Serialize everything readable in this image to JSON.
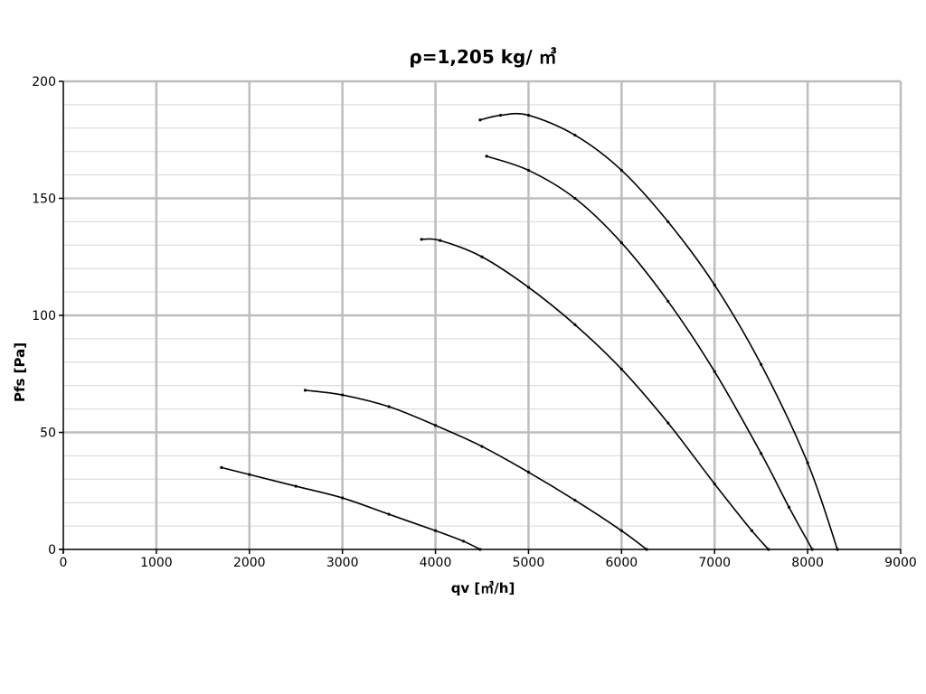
{
  "chart_data": {
    "type": "line",
    "title": "ρ=1,205 kg/ ㎥",
    "xlabel": "qv [㎥/h]",
    "ylabel": "Pfs [Pa]",
    "xlim": [
      0,
      9000
    ],
    "ylim": [
      0,
      200
    ],
    "x_ticks": [
      "0",
      "1000",
      "2000",
      "3000",
      "4000",
      "5000",
      "6000",
      "7000",
      "8000",
      "9000"
    ],
    "y_ticks": [
      "0",
      "50",
      "100",
      "150",
      "200"
    ],
    "y_minor_step": 10,
    "grid": true,
    "legend": "none",
    "series": [
      {
        "values": [
          [
            1700,
            35
          ],
          [
            2000,
            32
          ],
          [
            2500,
            27
          ],
          [
            3000,
            22
          ],
          [
            3500,
            15
          ],
          [
            4000,
            8
          ],
          [
            4300,
            3.5
          ],
          [
            4480,
            0
          ]
        ]
      },
      {
        "values": [
          [
            2600,
            68
          ],
          [
            3000,
            66
          ],
          [
            3500,
            61
          ],
          [
            4000,
            53
          ],
          [
            4500,
            44
          ],
          [
            5000,
            33
          ],
          [
            5500,
            21
          ],
          [
            6000,
            8
          ],
          [
            6270,
            0
          ]
        ]
      },
      {
        "values": [
          [
            3850,
            132.5
          ],
          [
            4050,
            132
          ],
          [
            4500,
            125
          ],
          [
            5000,
            112
          ],
          [
            5500,
            96
          ],
          [
            6000,
            77
          ],
          [
            6500,
            54
          ],
          [
            7000,
            28
          ],
          [
            7400,
            8
          ],
          [
            7580,
            0
          ]
        ]
      },
      {
        "values": [
          [
            4550,
            168
          ],
          [
            5000,
            162
          ],
          [
            5500,
            150
          ],
          [
            6000,
            131
          ],
          [
            6500,
            106
          ],
          [
            7000,
            76
          ],
          [
            7500,
            41
          ],
          [
            7800,
            18
          ],
          [
            8050,
            0
          ]
        ]
      },
      {
        "values": [
          [
            4480,
            183.5
          ],
          [
            4700,
            185.5
          ],
          [
            5000,
            185.5
          ],
          [
            5500,
            177
          ],
          [
            6000,
            162
          ],
          [
            6500,
            140
          ],
          [
            7000,
            113
          ],
          [
            7500,
            79
          ],
          [
            8000,
            37
          ],
          [
            8320,
            0
          ]
        ]
      }
    ]
  }
}
